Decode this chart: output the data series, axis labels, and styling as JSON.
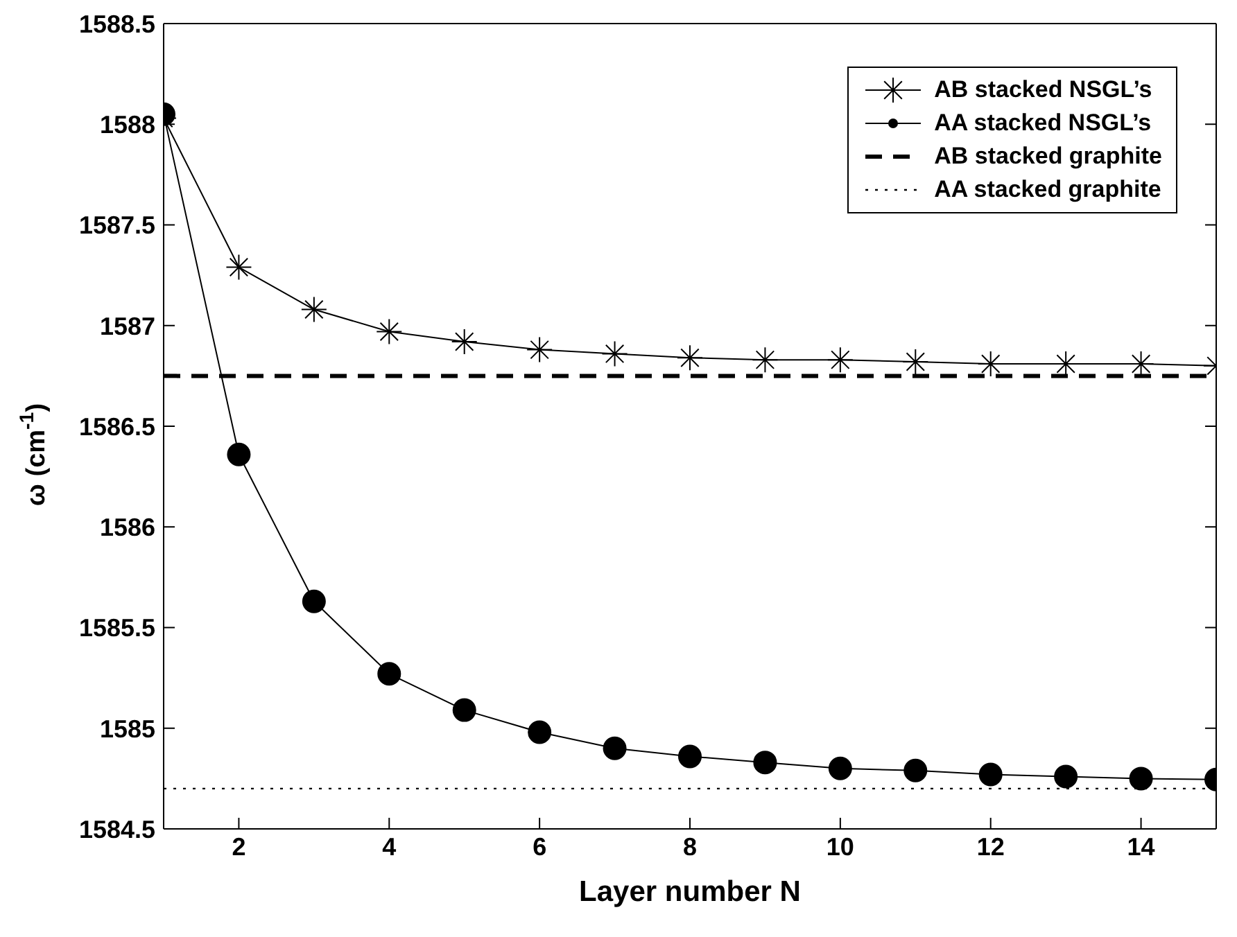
{
  "chart_data": {
    "type": "line",
    "xlabel": "Layer number N",
    "ylabel": "ω (cm$^{-1}$)",
    "xlim": [
      1,
      15
    ],
    "xticks": [
      2,
      4,
      6,
      8,
      10,
      12,
      14
    ],
    "ylim": [
      1584.5,
      1588.5
    ],
    "yticks": [
      1584.5,
      1585,
      1585.5,
      1586,
      1586.5,
      1587,
      1587.5,
      1588,
      1588.5
    ],
    "grid": false,
    "legend": "top right",
    "series": [
      {
        "name": "AB stacked NSGL’s",
        "color": "#000000",
        "marker": "cross",
        "line_style": "solid",
        "x": [
          1,
          2,
          3,
          4,
          5,
          6,
          7,
          8,
          9,
          10,
          11,
          12,
          13,
          14,
          15
        ],
        "values": [
          1588.03,
          1587.29,
          1587.08,
          1586.97,
          1586.92,
          1586.88,
          1586.86,
          1586.84,
          1586.83,
          1586.83,
          1586.82,
          1586.81,
          1586.81,
          1586.81,
          1586.8
        ]
      },
      {
        "name": "AA stacked NSGL’s",
        "color": "#000000",
        "marker": "circle",
        "line_style": "solid",
        "x": [
          1,
          2,
          3,
          4,
          5,
          6,
          7,
          8,
          9,
          10,
          11,
          12,
          13,
          14,
          15
        ],
        "values": [
          1588.05,
          1586.36,
          1585.63,
          1585.27,
          1585.09,
          1584.98,
          1584.9,
          1584.86,
          1584.83,
          1584.8,
          1584.79,
          1584.77,
          1584.76,
          1584.75,
          1584.745
        ]
      },
      {
        "name": "AB stacked graphite",
        "color": "#000000",
        "marker": "none",
        "line_style": "dashed",
        "x": [
          1,
          15
        ],
        "values": [
          1586.75,
          1586.75
        ]
      },
      {
        "name": "AA stacked graphite",
        "color": "#000000",
        "marker": "none",
        "line_style": "dotted",
        "x": [
          1,
          15
        ],
        "values": [
          1584.7,
          1584.7
        ]
      }
    ]
  }
}
